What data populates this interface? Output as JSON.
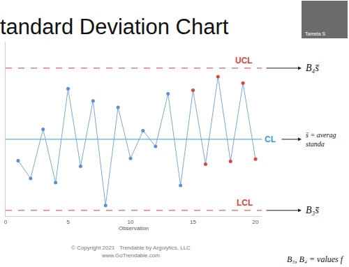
{
  "chart_data": {
    "type": "line",
    "title": "tandard Deviation Chart",
    "x_label": "Observation",
    "x": [
      1,
      2,
      3,
      4,
      5,
      6,
      7,
      8,
      9,
      10,
      11,
      12,
      13,
      14,
      15,
      16,
      17,
      18,
      19,
      20
    ],
    "values": [
      7.0,
      4.5,
      11.4,
      3.9,
      17.1,
      6.2,
      15.4,
      0.7,
      14.5,
      7.3,
      11.2,
      9.0,
      16.4,
      3.5,
      16.9,
      6.5,
      18.8,
      6.9,
      17.9,
      7.2
    ],
    "color": "#7ba7d9",
    "colors": [
      "#5b8fd0",
      "#5b8fd0",
      "#5b8fd0",
      "#5b8fd0",
      "#5b8fd0",
      "#5b8fd0",
      "#5b8fd0",
      "#5b8fd0",
      "#5b8fd0",
      "#5b8fd0",
      "#5b8fd0",
      "#5b8fd0",
      "#5b8fd0",
      "#5b8fd0",
      "#d9453f",
      "#d9453f",
      "#d9453f",
      "#d9453f",
      "#d9453f",
      "#d9453f"
    ],
    "marker": "circle",
    "line_style": "solid",
    "xlim": [
      0,
      20.5
    ],
    "xticks": [
      0,
      5,
      10,
      15,
      20
    ],
    "ylim": [
      -0.8,
      23.7
    ],
    "yticks": [],
    "tick_labels": "x",
    "grid": false,
    "limits": [
      {
        "name": "UCL",
        "value": 20,
        "color": "#e0403a",
        "line_style": "dashed",
        "formula": [
          "B₄s̄"
        ]
      },
      {
        "name": "CL",
        "value": 10,
        "color": "#3a9fd6",
        "line_style": "solid",
        "formula": [
          "s̄ = averag",
          "standa"
        ]
      },
      {
        "name": "LCL",
        "value": 0,
        "color": "#e0403a",
        "line_style": "dashed",
        "formula": [
          "B₃s̄"
        ]
      }
    ],
    "note": "B₃, B₄ = values f",
    "footer": [
      "© Copyright 2021   Trendable by Argolytics, LLC",
      "www.GoTrendable.com"
    ],
    "video_label": "Tamela S"
  }
}
